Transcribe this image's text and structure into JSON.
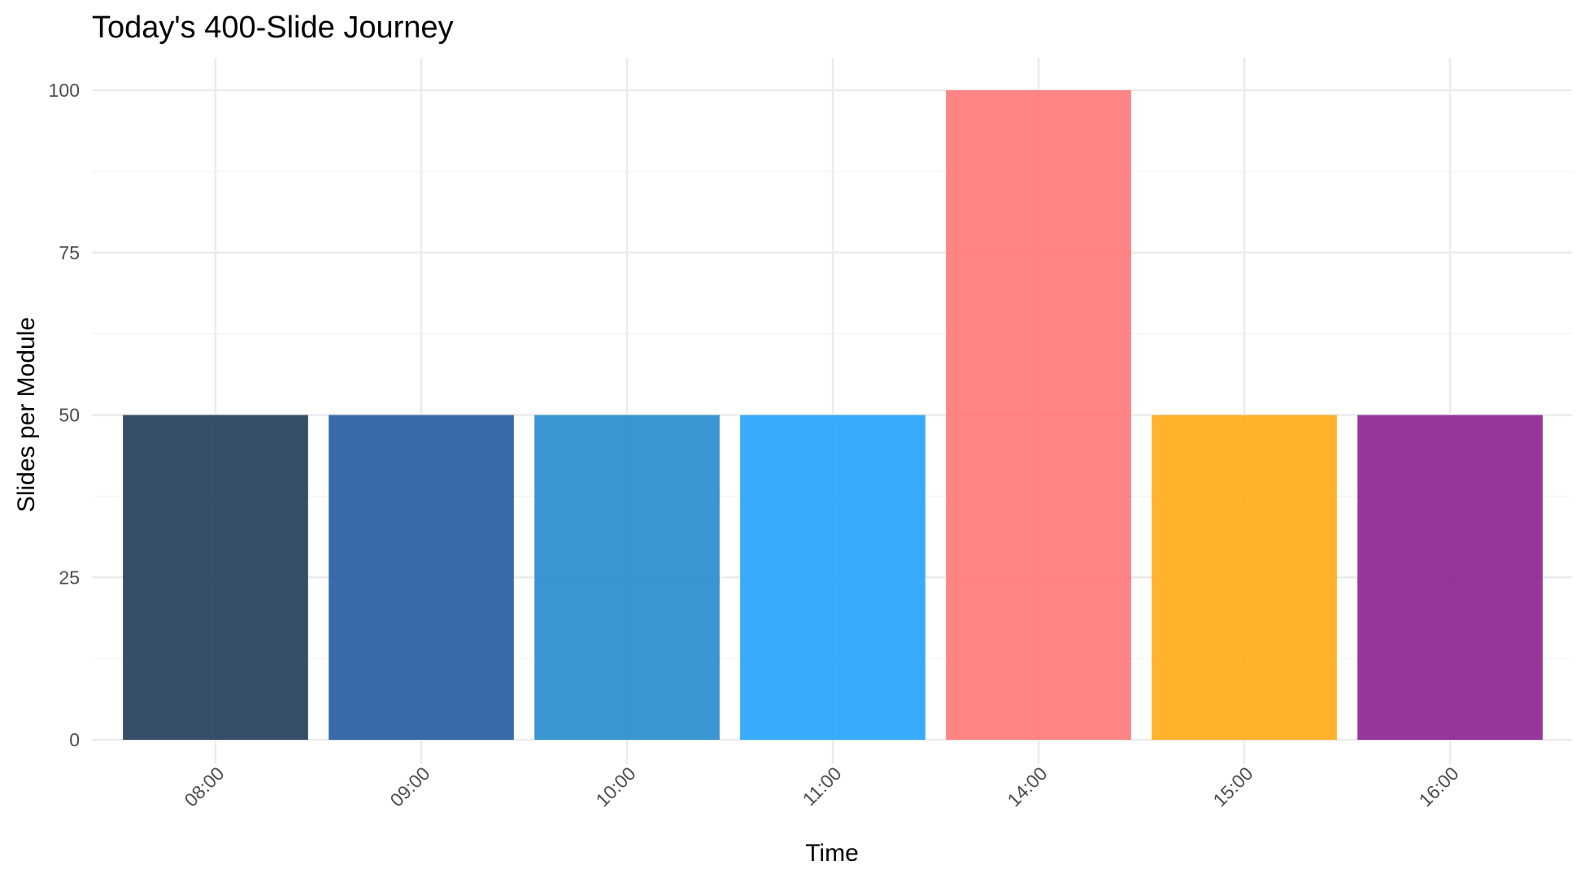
{
  "chart_data": {
    "type": "bar",
    "title": "Today's 400-Slide Journey",
    "xlabel": "Time",
    "ylabel": "Slides per Module",
    "categories": [
      "08:00",
      "09:00",
      "10:00",
      "11:00",
      "14:00",
      "15:00",
      "16:00"
    ],
    "values": [
      50,
      50,
      50,
      50,
      100,
      50,
      50
    ],
    "colors": [
      "#1b3654",
      "#1e56a0",
      "#1e88c9",
      "#1ca1fb",
      "#ff7474",
      "#ffa70f",
      "#871a8c"
    ],
    "ylim": [
      0,
      105
    ],
    "yticks": [
      0,
      25,
      50,
      75,
      100
    ],
    "ytick_labels": [
      "0",
      "25",
      "50",
      "75",
      "100"
    ],
    "grid": true,
    "legend": "none"
  }
}
